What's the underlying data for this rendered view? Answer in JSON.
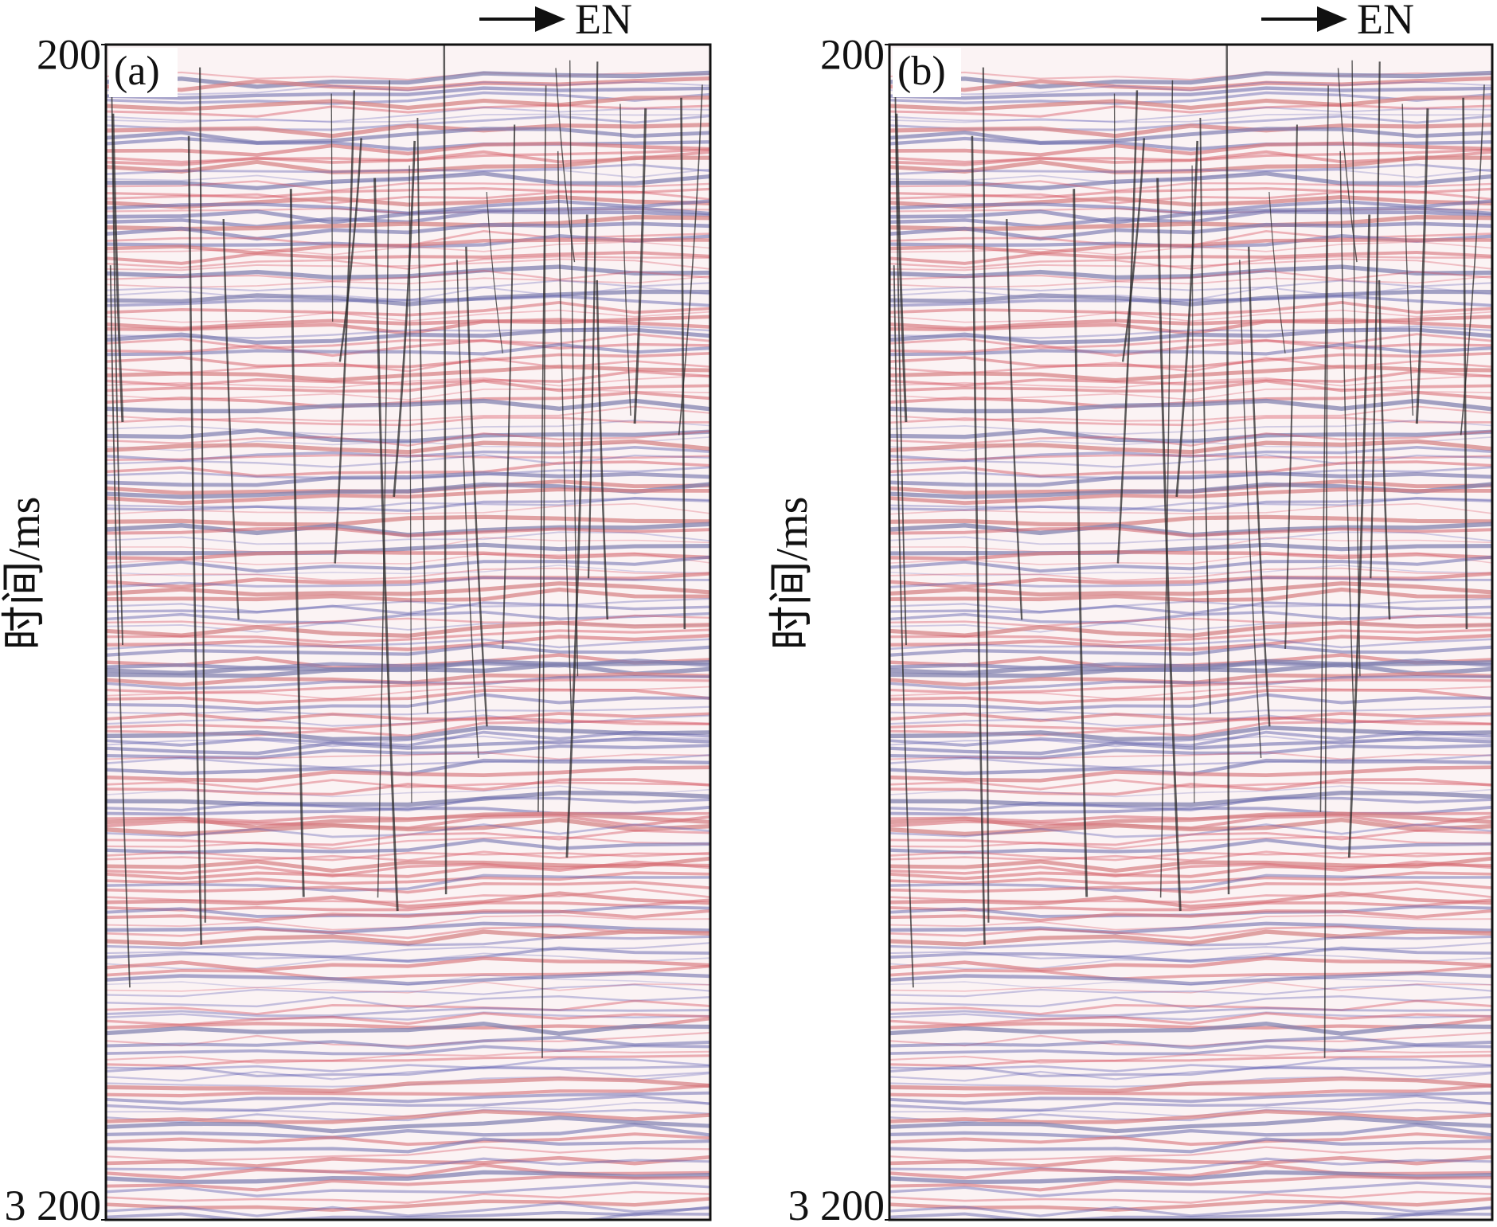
{
  "panels": [
    {
      "label": "(a)",
      "direction": "EN",
      "ylabel": "时间/ms",
      "ylim": [
        200,
        3200
      ],
      "yticks": [
        {
          "value": 200,
          "label": "200"
        },
        {
          "value": 3200,
          "label": "3 200"
        }
      ]
    },
    {
      "label": "(b)",
      "direction": "EN",
      "ylabel": "时间/ms",
      "ylim": [
        200,
        3200
      ],
      "yticks": [
        {
          "value": 200,
          "label": "200"
        },
        {
          "value": 3200,
          "label": "3 200"
        }
      ]
    }
  ]
}
